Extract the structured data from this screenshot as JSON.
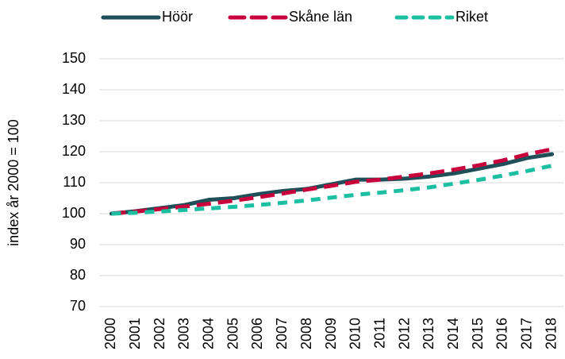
{
  "chart_data": {
    "type": "line",
    "y_label": "index år 2000 = 100",
    "categories": [
      "2000",
      "2001",
      "2002",
      "2003",
      "2004",
      "2005",
      "2006",
      "2007",
      "2008",
      "2009",
      "2010",
      "2011",
      "2012",
      "2013",
      "2014",
      "2015",
      "2016",
      "2017",
      "2018"
    ],
    "series": [
      {
        "name": "Höör",
        "color": "#1f4f58",
        "line_style": "solid",
        "values": [
          100,
          100.8,
          101.8,
          102.8,
          104.5,
          105,
          106.3,
          107.3,
          108,
          109.5,
          111,
          111,
          111.3,
          112,
          113,
          114.5,
          116,
          118,
          119.2
        ]
      },
      {
        "name": "Skåne län",
        "color": "#c8003c",
        "line_style": "dashed",
        "values": [
          100,
          100.7,
          101.5,
          102.3,
          103.2,
          104.2,
          105.3,
          106.5,
          107.8,
          109,
          110.3,
          111,
          112,
          113,
          114.2,
          115.6,
          117.2,
          119.2,
          120.8
        ]
      },
      {
        "name": "Riket",
        "color": "#1dbfa3",
        "line_style": "dashed",
        "values": [
          100,
          100.3,
          100.7,
          101.2,
          101.7,
          102.2,
          102.8,
          103.5,
          104.3,
          105.2,
          106.1,
          106.8,
          107.6,
          108.5,
          109.7,
          110.9,
          112.3,
          113.8,
          115.5
        ]
      }
    ],
    "ylim": [
      70,
      150
    ],
    "yticks": [
      70,
      80,
      90,
      100,
      110,
      120,
      130,
      140,
      150
    ],
    "grid": true,
    "legend": "top"
  }
}
